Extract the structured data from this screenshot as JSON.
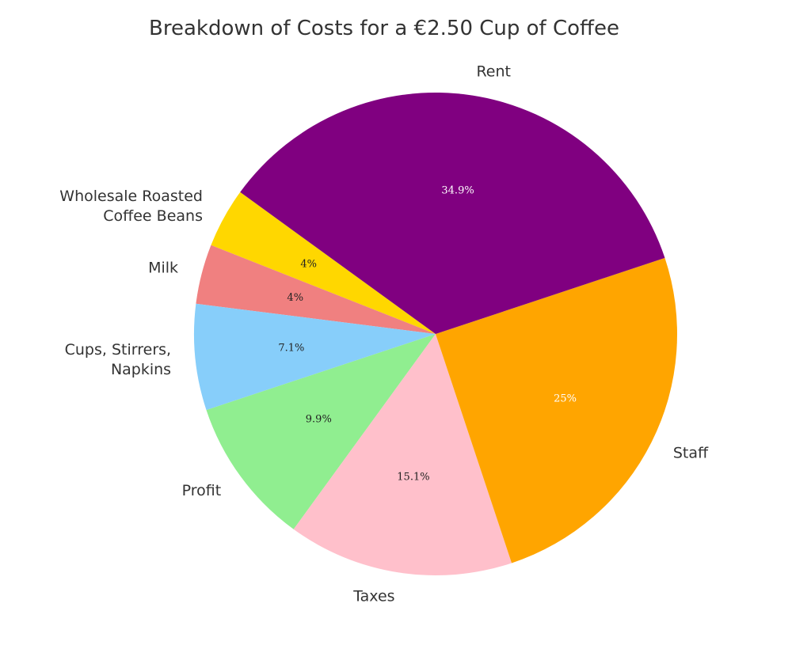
{
  "chart_data": {
    "type": "pie",
    "title": "Breakdown of Costs for a €2.50 Cup of Coffee",
    "start_angle_deg": 144,
    "direction": "counterclockwise",
    "slices": [
      {
        "label": [
          "Wholesale Roasted",
          "Coffee Beans"
        ],
        "value": 4.0,
        "pct_text": "4%",
        "color": "#FFD700",
        "pct_color": "#222222"
      },
      {
        "label": [
          "Milk"
        ],
        "value": 4.0,
        "pct_text": "4%",
        "color": "#F08080",
        "pct_color": "#222222"
      },
      {
        "label": [
          "Cups, Stirrers,",
          "Napkins"
        ],
        "value": 7.1,
        "pct_text": "7.1%",
        "color": "#87CEFA",
        "pct_color": "#222222"
      },
      {
        "label": [
          "Profit"
        ],
        "value": 9.9,
        "pct_text": "9.9%",
        "color": "#90EE90",
        "pct_color": "#222222"
      },
      {
        "label": [
          "Taxes"
        ],
        "value": 15.1,
        "pct_text": "15.1%",
        "color": "#FFC0CB",
        "pct_color": "#222222"
      },
      {
        "label": [
          "Staff"
        ],
        "value": 25.0,
        "pct_text": "25%",
        "color": "#FFA500",
        "pct_color": "#ffffff"
      },
      {
        "label": [
          "Rent"
        ],
        "value": 34.9,
        "pct_text": "34.9%",
        "color": "#800080",
        "pct_color": "#ffffff"
      }
    ]
  }
}
